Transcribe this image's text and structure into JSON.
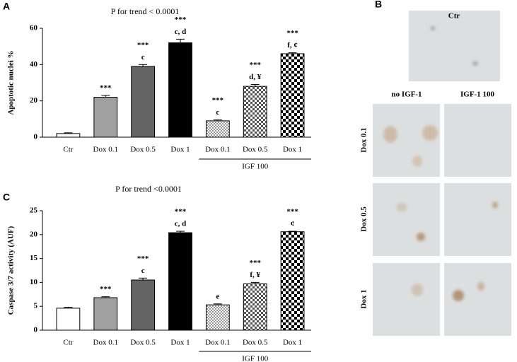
{
  "panels": {
    "a": "A",
    "b": "B",
    "c": "C"
  },
  "micrographs": {
    "control": "Ctr",
    "columns": [
      "no IGF-1",
      "IGF-1 100"
    ],
    "rows": [
      "Dox 0.1",
      "Dox 0.5",
      "Dox 1"
    ]
  },
  "chart_data": [
    {
      "type": "bar",
      "subtitle": "P for trend < 0.0001",
      "y_label": "Apoptotic nuclei %",
      "categories": [
        "Ctr",
        "Dox 0.1",
        "Dox 0.5",
        "Dox 1",
        "Dox 0.1",
        "Dox 0.5",
        "Dox 1"
      ],
      "values": [
        2,
        22,
        39,
        52,
        9,
        28,
        46
      ],
      "errors": [
        0.4,
        1,
        1,
        2,
        0.5,
        1,
        0.5
      ],
      "colors": [
        "#ffffff",
        "#a0a0a0",
        "#646464",
        "#000000",
        "pattern-fine",
        "pattern-medium",
        "pattern-coarse"
      ],
      "annotations": [
        [],
        [
          "***"
        ],
        [
          "***",
          "c"
        ],
        [
          "***",
          "c, d"
        ],
        [
          "***",
          "c"
        ],
        [
          "***",
          "d, ¥"
        ],
        [
          "***",
          "f, ¢"
        ]
      ],
      "group": {
        "label": "IGF 100",
        "from": 4,
        "to": 6
      },
      "ylim": [
        0,
        60
      ],
      "yticks": [
        0,
        20,
        40,
        60
      ]
    },
    {
      "type": "bar",
      "subtitle": "P for trend <0.0001",
      "y_label": "Caspase 3/7 activity (AUF)",
      "categories": [
        "Ctr",
        "Dox 0.1",
        "Dox 0.5",
        "Dox 1",
        "Dox 0.1",
        "Dox 0.5",
        "Dox 1"
      ],
      "values": [
        4.6,
        6.8,
        10.5,
        20.4,
        5.3,
        9.7,
        20.6
      ],
      "errors": [
        0.2,
        0.2,
        0.4,
        0.3,
        0.2,
        0.3,
        0.1
      ],
      "colors": [
        "#ffffff",
        "#a0a0a0",
        "#646464",
        "#000000",
        "pattern-fine",
        "pattern-medium",
        "pattern-coarse"
      ],
      "annotations": [
        [],
        [
          "***"
        ],
        [
          "***",
          "c"
        ],
        [
          "***",
          "c, d"
        ],
        [
          "e"
        ],
        [
          "***",
          "f, ¥"
        ],
        [
          "***",
          "¢"
        ]
      ],
      "group": {
        "label": "IGF 100",
        "from": 4,
        "to": 6
      },
      "ylim": [
        0,
        25
      ],
      "yticks": [
        0,
        5,
        10,
        15,
        20,
        25
      ]
    }
  ]
}
